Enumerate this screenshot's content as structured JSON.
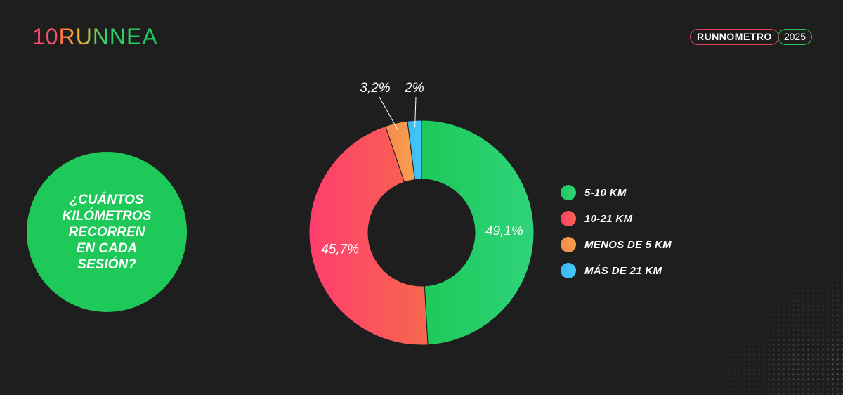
{
  "brand": {
    "number": "10",
    "word": "RUNNEA"
  },
  "badge": {
    "label": "RUNNOMETRO",
    "year": "2025"
  },
  "question": "¿CUÁNTOS KILÓMETROS RECORREN EN CADA SESIÓN?",
  "chart_data": {
    "type": "pie",
    "donut": true,
    "slices": [
      {
        "label": "5-10 KM",
        "value": 49.1,
        "display": "49,1%",
        "color": "#1ec95a",
        "color2": "#2fd37a"
      },
      {
        "label": "10-21 KM",
        "value": 45.7,
        "display": "45,7%",
        "color": "#ff3d6e",
        "color2": "#f7674d"
      },
      {
        "label": "MENOS DE 5 KM",
        "value": 3.2,
        "display": "3,2%",
        "color": "#f78a4d",
        "color2": "#f7a04d"
      },
      {
        "label": "MÁS DE 21 KM",
        "value": 2.0,
        "display": "2%",
        "color": "#3ab7f5",
        "color2": "#45c8f8"
      }
    ],
    "legend_position": "right"
  }
}
